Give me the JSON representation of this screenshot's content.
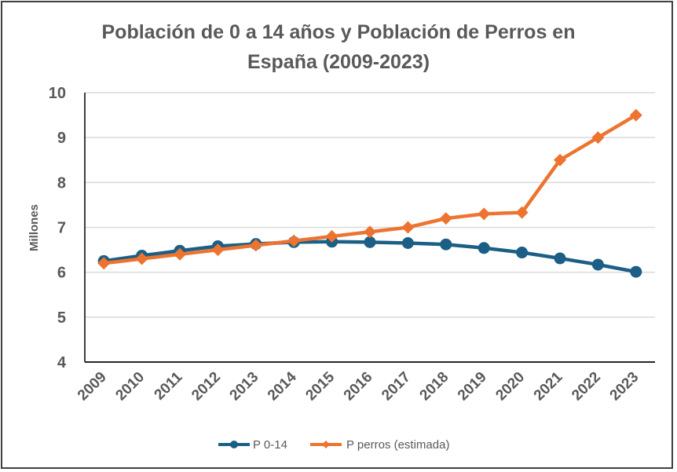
{
  "chart_data": {
    "type": "line",
    "title_lines": [
      "Población de 0 a 14 años y Población de Perros en",
      "España (2009-2023)"
    ],
    "title": "Población de 0 a 14 años y Población de Perros en España (2009-2023)",
    "xlabel": "",
    "ylabel": "Millones",
    "ylim": [
      4,
      10
    ],
    "yticks": [
      4,
      5,
      6,
      7,
      8,
      9,
      10
    ],
    "ytick_labels": [
      "4",
      "5",
      "6",
      "7",
      "8",
      "9",
      "10"
    ],
    "grid": true,
    "legend_position": "bottom",
    "categories": [
      "2009",
      "2010",
      "2011",
      "2012",
      "2013",
      "2014",
      "2015",
      "2016",
      "2017",
      "2018",
      "2019",
      "2020",
      "2021",
      "2022",
      "2023"
    ],
    "series": [
      {
        "name": "P 0-14",
        "color": "#1b5f86",
        "marker": "circle",
        "values": [
          6.25,
          6.37,
          6.48,
          6.58,
          6.63,
          6.67,
          6.68,
          6.67,
          6.65,
          6.62,
          6.54,
          6.44,
          6.31,
          6.17,
          6.01
        ]
      },
      {
        "name": "P perros (estimada)",
        "color": "#ed7430",
        "marker": "diamond",
        "values": [
          6.2,
          6.3,
          6.4,
          6.5,
          6.6,
          6.7,
          6.8,
          6.9,
          7.0,
          7.2,
          7.3,
          7.33,
          8.5,
          9.0,
          9.5
        ]
      }
    ]
  }
}
